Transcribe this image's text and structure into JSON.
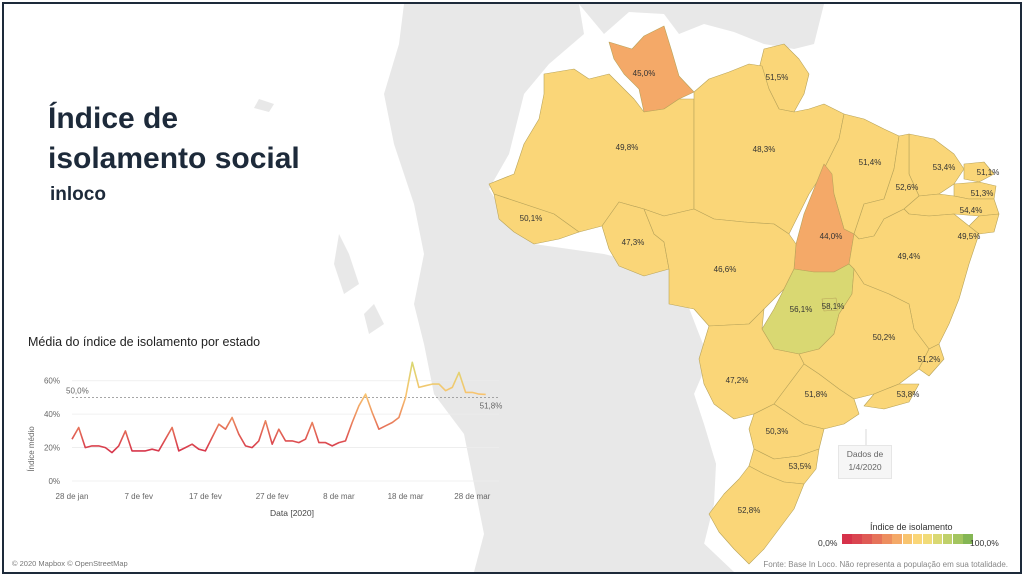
{
  "title_line1": "Índice de",
  "title_line2": "isolamento social",
  "brand": "inloco",
  "chart": {
    "title": "Média do índice de isolamento por estado",
    "y_label": "Índice médio",
    "x_label": "Data [2020]",
    "reference_label": "50,0%",
    "last_value_label": "51,8%"
  },
  "date_note": {
    "line1": "Dados de",
    "line2": "1/4/2020"
  },
  "legend": {
    "title": "Índice de isolamento",
    "min": "0,0%",
    "max": "100,0%",
    "colors": [
      "#d6324a",
      "#da4550",
      "#df5a55",
      "#e6735a",
      "#ed8e5f",
      "#f4a968",
      "#f8c46f",
      "#fad678",
      "#f1db78",
      "#d9d872",
      "#bfd06a",
      "#a3c55f",
      "#84b654"
    ]
  },
  "colors": {
    "land": "#e8e8e8",
    "sea": "#ffffff",
    "yellow": "#fad678",
    "orange": "#f4a968",
    "green": "#d9d872",
    "title": "#1d2a3a"
  },
  "credit": "© 2020 Mapbox © OpenStreetMap",
  "source": "Fonte: Base In Loco. Não representa a população em sua totalidade.",
  "states": [
    {
      "name": "Roraima",
      "label": "45,0%",
      "value": 45.0,
      "color": "#f4a968"
    },
    {
      "name": "Amapá",
      "label": "51,5%",
      "value": 51.5,
      "color": "#fad678"
    },
    {
      "name": "Amazonas",
      "label": "49,8%",
      "value": 49.8,
      "color": "#fad678"
    },
    {
      "name": "Pará",
      "label": "48,3%",
      "value": 48.3,
      "color": "#fad678"
    },
    {
      "name": "Maranhão",
      "label": "51,4%",
      "value": 51.4,
      "color": "#fad678"
    },
    {
      "name": "Ceará",
      "label": "53,4%",
      "value": 53.4,
      "color": "#fad678"
    },
    {
      "name": "Rio Grande do Norte",
      "label": "51,1%",
      "value": 51.1,
      "color": "#fad678"
    },
    {
      "name": "Piauí",
      "label": "52,6%",
      "value": 52.6,
      "color": "#fad678"
    },
    {
      "name": "Paraíba",
      "label": "51,3%",
      "value": 51.3,
      "color": "#fad678"
    },
    {
      "name": "Pernambuco",
      "label": "54,4%",
      "value": 54.4,
      "color": "#fad678"
    },
    {
      "name": "Alagoas",
      "label": "49,5%",
      "value": 49.5,
      "color": "#fad678"
    },
    {
      "name": "Acre",
      "label": "50,1%",
      "value": 50.1,
      "color": "#fad678"
    },
    {
      "name": "Rondônia",
      "label": "47,3%",
      "value": 47.3,
      "color": "#fad678"
    },
    {
      "name": "Tocantins",
      "label": "44,0%",
      "value": 44.0,
      "color": "#f4a968"
    },
    {
      "name": "Bahia",
      "label": "49,4%",
      "value": 49.4,
      "color": "#fad678"
    },
    {
      "name": "Mato Grosso",
      "label": "46,6%",
      "value": 46.6,
      "color": "#fad678"
    },
    {
      "name": "Goiás",
      "label": "56,1%",
      "value": 56.1,
      "color": "#d9d872"
    },
    {
      "name": "Distrito Federal",
      "label": "58,1%",
      "value": 58.1,
      "color": "#d9d872"
    },
    {
      "name": "Minas Gerais",
      "label": "50,2%",
      "value": 50.2,
      "color": "#fad678"
    },
    {
      "name": "Espírito Santo",
      "label": "51,2%",
      "value": 51.2,
      "color": "#fad678"
    },
    {
      "name": "Mato Grosso do Sul",
      "label": "47,2%",
      "value": 47.2,
      "color": "#fad678"
    },
    {
      "name": "São Paulo",
      "label": "51,8%",
      "value": 51.8,
      "color": "#fad678"
    },
    {
      "name": "Rio de Janeiro",
      "label": "53,8%",
      "value": 53.8,
      "color": "#fad678"
    },
    {
      "name": "Paraná",
      "label": "50,3%",
      "value": 50.3,
      "color": "#fad678"
    },
    {
      "name": "Santa Catarina",
      "label": "53,5%",
      "value": 53.5,
      "color": "#fad678"
    },
    {
      "name": "Rio Grande do Sul",
      "label": "52,8%",
      "value": 52.8,
      "color": "#fad678"
    }
  ],
  "chart_data": {
    "type": "line",
    "title": "Média do índice de isolamento por estado",
    "xlabel": "Data [2020]",
    "ylabel": "Índice médio",
    "x_ticks": [
      "28 de jan",
      "7 de fev",
      "17 de fev",
      "27 de fev",
      "8 de mar",
      "18 de mar",
      "28 de mar"
    ],
    "y_ticks": [
      "0%",
      "20%",
      "40%",
      "60%"
    ],
    "ylim": [
      0,
      70
    ],
    "reference_line": 50.0,
    "x": [
      "2020-01-28",
      "2020-01-29",
      "2020-01-30",
      "2020-01-31",
      "2020-02-01",
      "2020-02-02",
      "2020-02-03",
      "2020-02-04",
      "2020-02-05",
      "2020-02-06",
      "2020-02-07",
      "2020-02-08",
      "2020-02-09",
      "2020-02-10",
      "2020-02-11",
      "2020-02-12",
      "2020-02-13",
      "2020-02-14",
      "2020-02-15",
      "2020-02-16",
      "2020-02-17",
      "2020-02-18",
      "2020-02-19",
      "2020-02-20",
      "2020-02-21",
      "2020-02-22",
      "2020-02-23",
      "2020-02-24",
      "2020-02-25",
      "2020-02-26",
      "2020-02-27",
      "2020-02-28",
      "2020-02-29",
      "2020-03-01",
      "2020-03-02",
      "2020-03-03",
      "2020-03-04",
      "2020-03-05",
      "2020-03-06",
      "2020-03-07",
      "2020-03-08",
      "2020-03-09",
      "2020-03-10",
      "2020-03-11",
      "2020-03-12",
      "2020-03-13",
      "2020-03-14",
      "2020-03-15",
      "2020-03-16",
      "2020-03-17",
      "2020-03-18",
      "2020-03-19",
      "2020-03-20",
      "2020-03-21",
      "2020-03-22",
      "2020-03-23",
      "2020-03-24",
      "2020-03-25",
      "2020-03-26",
      "2020-03-27",
      "2020-03-28",
      "2020-03-29",
      "2020-03-30",
      "2020-03-31",
      "2020-04-01"
    ],
    "values": [
      25,
      32,
      20,
      21,
      21,
      20,
      17,
      21,
      30,
      18,
      18,
      18,
      19,
      18,
      25,
      32,
      18,
      20,
      22,
      19,
      18,
      26,
      34,
      31,
      38,
      28,
      21,
      20,
      24,
      36,
      22,
      31,
      24,
      24,
      23,
      25,
      35,
      23,
      23,
      21,
      23,
      24,
      35,
      45,
      52,
      41,
      31,
      33,
      35,
      38,
      50,
      71,
      56,
      57,
      58,
      58,
      54,
      56,
      65,
      53,
      53,
      52,
      51.8,
      51.8,
      51.8
    ],
    "last_value_label": "51,8%"
  }
}
